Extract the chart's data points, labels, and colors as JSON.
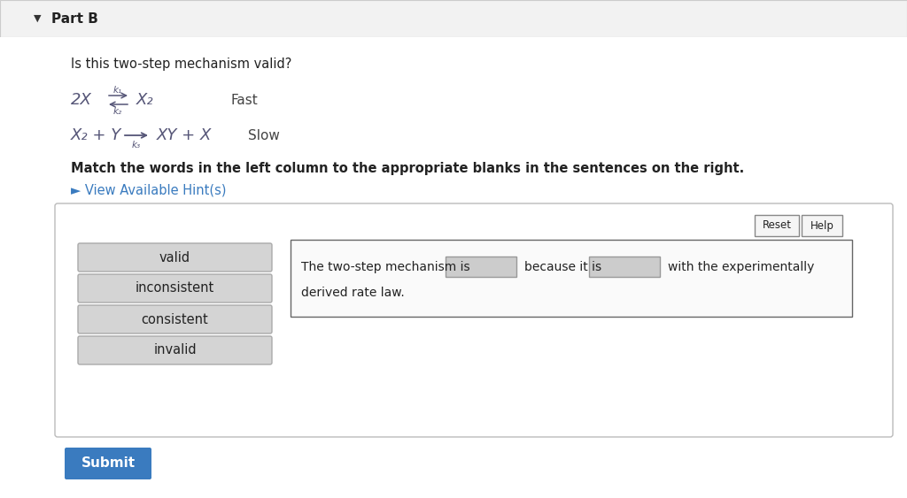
{
  "bg_color": "#e8e8e8",
  "header_bg": "#f2f2f2",
  "panel_bg": "#ffffff",
  "title": "Part B",
  "question": "Is this two-step mechanism valid?",
  "eq1_left": "2X",
  "eq1_right": "X₂",
  "eq1_label": "Fast",
  "eq1_k_top": "k₁",
  "eq1_k_bot": "k₂",
  "eq2_left": "X₂ + Y",
  "eq2_right": "XY + X",
  "eq2_label": "Slow",
  "eq2_k": "k₃",
  "instruction": "Match the words in the left column to the appropriate blanks in the sentences on the right.",
  "hint_text": "► View Available Hint(s)",
  "hint_color": "#3a7bbf",
  "word_buttons": [
    "valid",
    "inconsistent",
    "consistent",
    "invalid"
  ],
  "sentence_part1": "The two-step mechanism is",
  "sentence_part2": "because it is",
  "sentence_part3": "with the experimentally",
  "sentence_part4": "derived rate law.",
  "reset_text": "Reset",
  "help_text": "Help",
  "submit_text": "Submit",
  "submit_bg": "#3a7bbf",
  "submit_text_color": "#ffffff",
  "button_bg": "#d4d4d4",
  "button_border": "#aaaaaa",
  "outer_border": "#bbbbbb",
  "inner_panel_border": "#bbbbbb",
  "eq_color": "#555577",
  "text_color": "#222222",
  "blank_bg": "#cccccc",
  "blank_border": "#999999"
}
